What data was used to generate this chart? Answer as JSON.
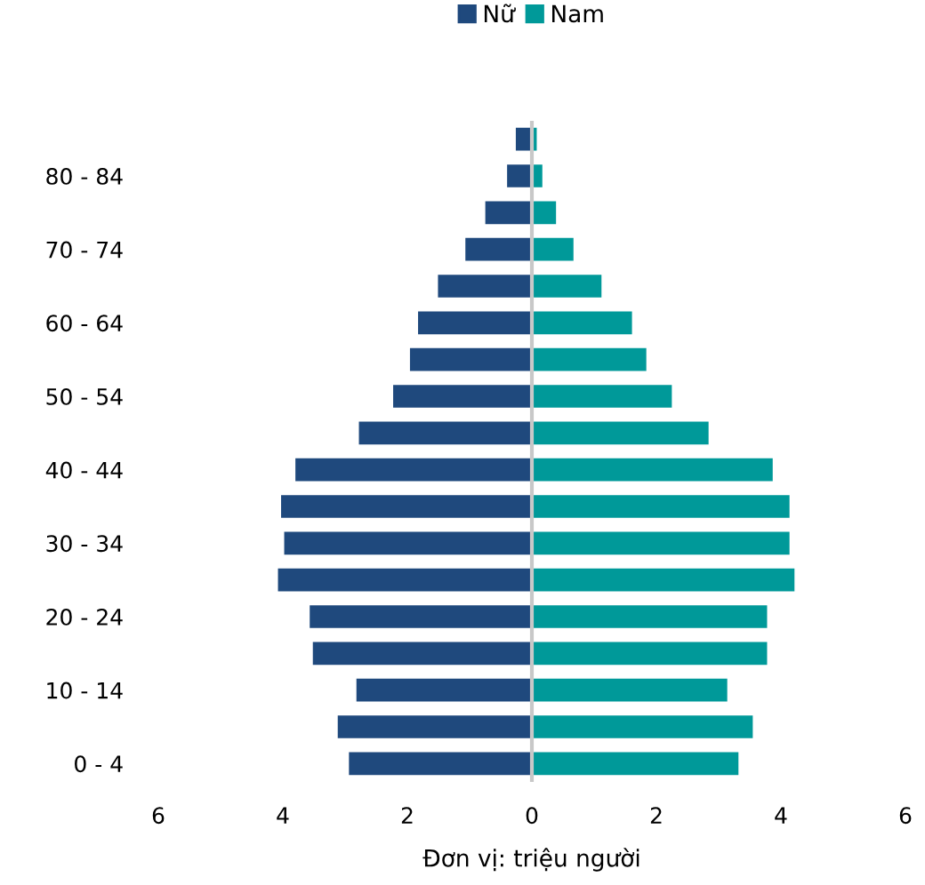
{
  "chart_data": {
    "type": "bar",
    "orientation": "horizontal",
    "xlabel": "Đơn vị: triệu người",
    "categories": [
      null,
      "80 - 84",
      null,
      "70 - 74",
      null,
      "60 - 64",
      null,
      "50 - 54",
      null,
      "40 - 44",
      null,
      "30 - 34",
      null,
      "20 - 24",
      null,
      "10 - 14",
      null,
      "0 - 4"
    ],
    "series": [
      {
        "name": "Nữ",
        "color": "#1f497d",
        "values": [
          -0.27,
          -0.41,
          -0.76,
          -1.08,
          -1.52,
          -1.84,
          -1.97,
          -2.24,
          -2.79,
          -3.81,
          -4.04,
          -3.99,
          -4.09,
          -3.58,
          -3.53,
          -2.83,
          -3.13,
          -2.95
        ]
      },
      {
        "name": "Nam",
        "color": "#009999",
        "values": [
          0.09,
          0.18,
          0.4,
          0.68,
          1.13,
          1.62,
          1.85,
          2.26,
          2.85,
          3.88,
          4.15,
          4.15,
          4.23,
          3.79,
          3.79,
          3.15,
          3.56,
          3.33
        ]
      }
    ],
    "xlim": [
      -6,
      6
    ],
    "xticks": [
      {
        "value": -6,
        "label": "6"
      },
      {
        "value": -4,
        "label": "4"
      },
      {
        "value": -2,
        "label": "2"
      },
      0,
      2,
      4,
      6
    ],
    "ref_lines": [
      {
        "axis": "x",
        "value": 0,
        "color": "#c8c8c8"
      }
    ],
    "stacked": true,
    "legend": "top",
    "grid": false
  }
}
